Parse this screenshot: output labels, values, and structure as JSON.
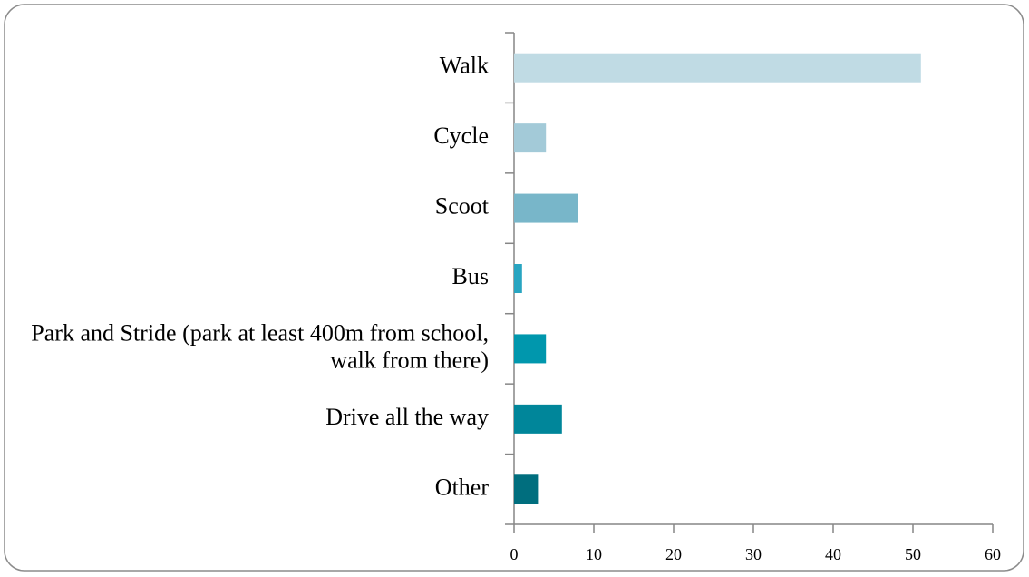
{
  "chart_data": {
    "type": "barh",
    "categories": [
      "Walk",
      "Cycle",
      "Scoot",
      "Bus",
      "Park and Stride (park at least 400m from school, walk from there)",
      "Drive all the way",
      "Other"
    ],
    "values": [
      51,
      4,
      8,
      1,
      4,
      6,
      3
    ],
    "colors": [
      "#c0dbe4",
      "#a3cad8",
      "#78b6c9",
      "#28a5c1",
      "#0097ad",
      "#00869a",
      "#006e7e"
    ],
    "xlim": [
      0,
      60
    ],
    "xticks": [
      0,
      10,
      20,
      30,
      40,
      50,
      60
    ],
    "grid": false
  }
}
